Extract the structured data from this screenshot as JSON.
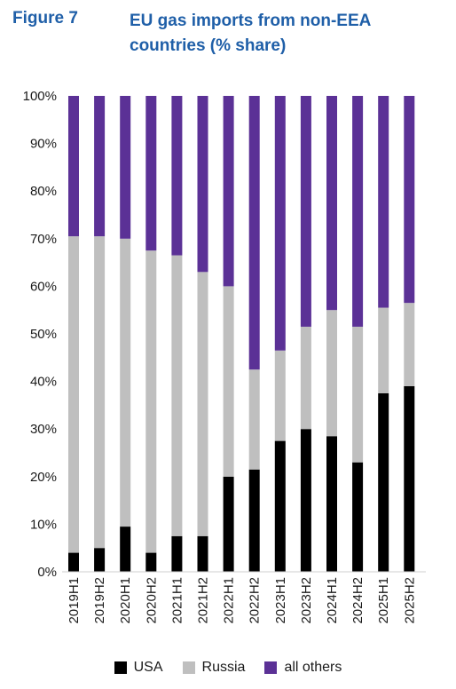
{
  "header": {
    "figure_label": "Figure 7",
    "title": "EU gas imports from non-EEA countries (% share)"
  },
  "colors": {
    "USA": "#000000",
    "Russia": "#bfbfbf",
    "all others": "#5b3196"
  },
  "chart_data": {
    "type": "bar",
    "stacked": true,
    "categories": [
      "2019H1",
      "2019H2",
      "2020H1",
      "2020H2",
      "2021H1",
      "2021H2",
      "2022H1",
      "2022H2",
      "2023H1",
      "2023H2",
      "2024H1",
      "2024H2",
      "2025H1",
      "2025H2"
    ],
    "series": [
      {
        "name": "USA",
        "values": [
          4,
          5,
          9.5,
          4,
          7.5,
          7.5,
          20,
          21.5,
          27.5,
          30,
          28.5,
          23,
          37.5,
          39
        ]
      },
      {
        "name": "Russia",
        "values": [
          66.5,
          65.5,
          60.5,
          63.5,
          59,
          55.5,
          40,
          21,
          19,
          21.5,
          26.5,
          28.5,
          18,
          17.5
        ]
      },
      {
        "name": "all others",
        "values": [
          29.5,
          29.5,
          30,
          32.5,
          33.5,
          37,
          40,
          57.5,
          53.5,
          48.5,
          45,
          48.5,
          44.5,
          43.5
        ]
      }
    ],
    "yticks": [
      "0%",
      "10%",
      "20%",
      "30%",
      "40%",
      "50%",
      "60%",
      "70%",
      "80%",
      "90%",
      "100%"
    ],
    "ylim": [
      0,
      100
    ],
    "legend_position": "bottom",
    "grid": false
  }
}
